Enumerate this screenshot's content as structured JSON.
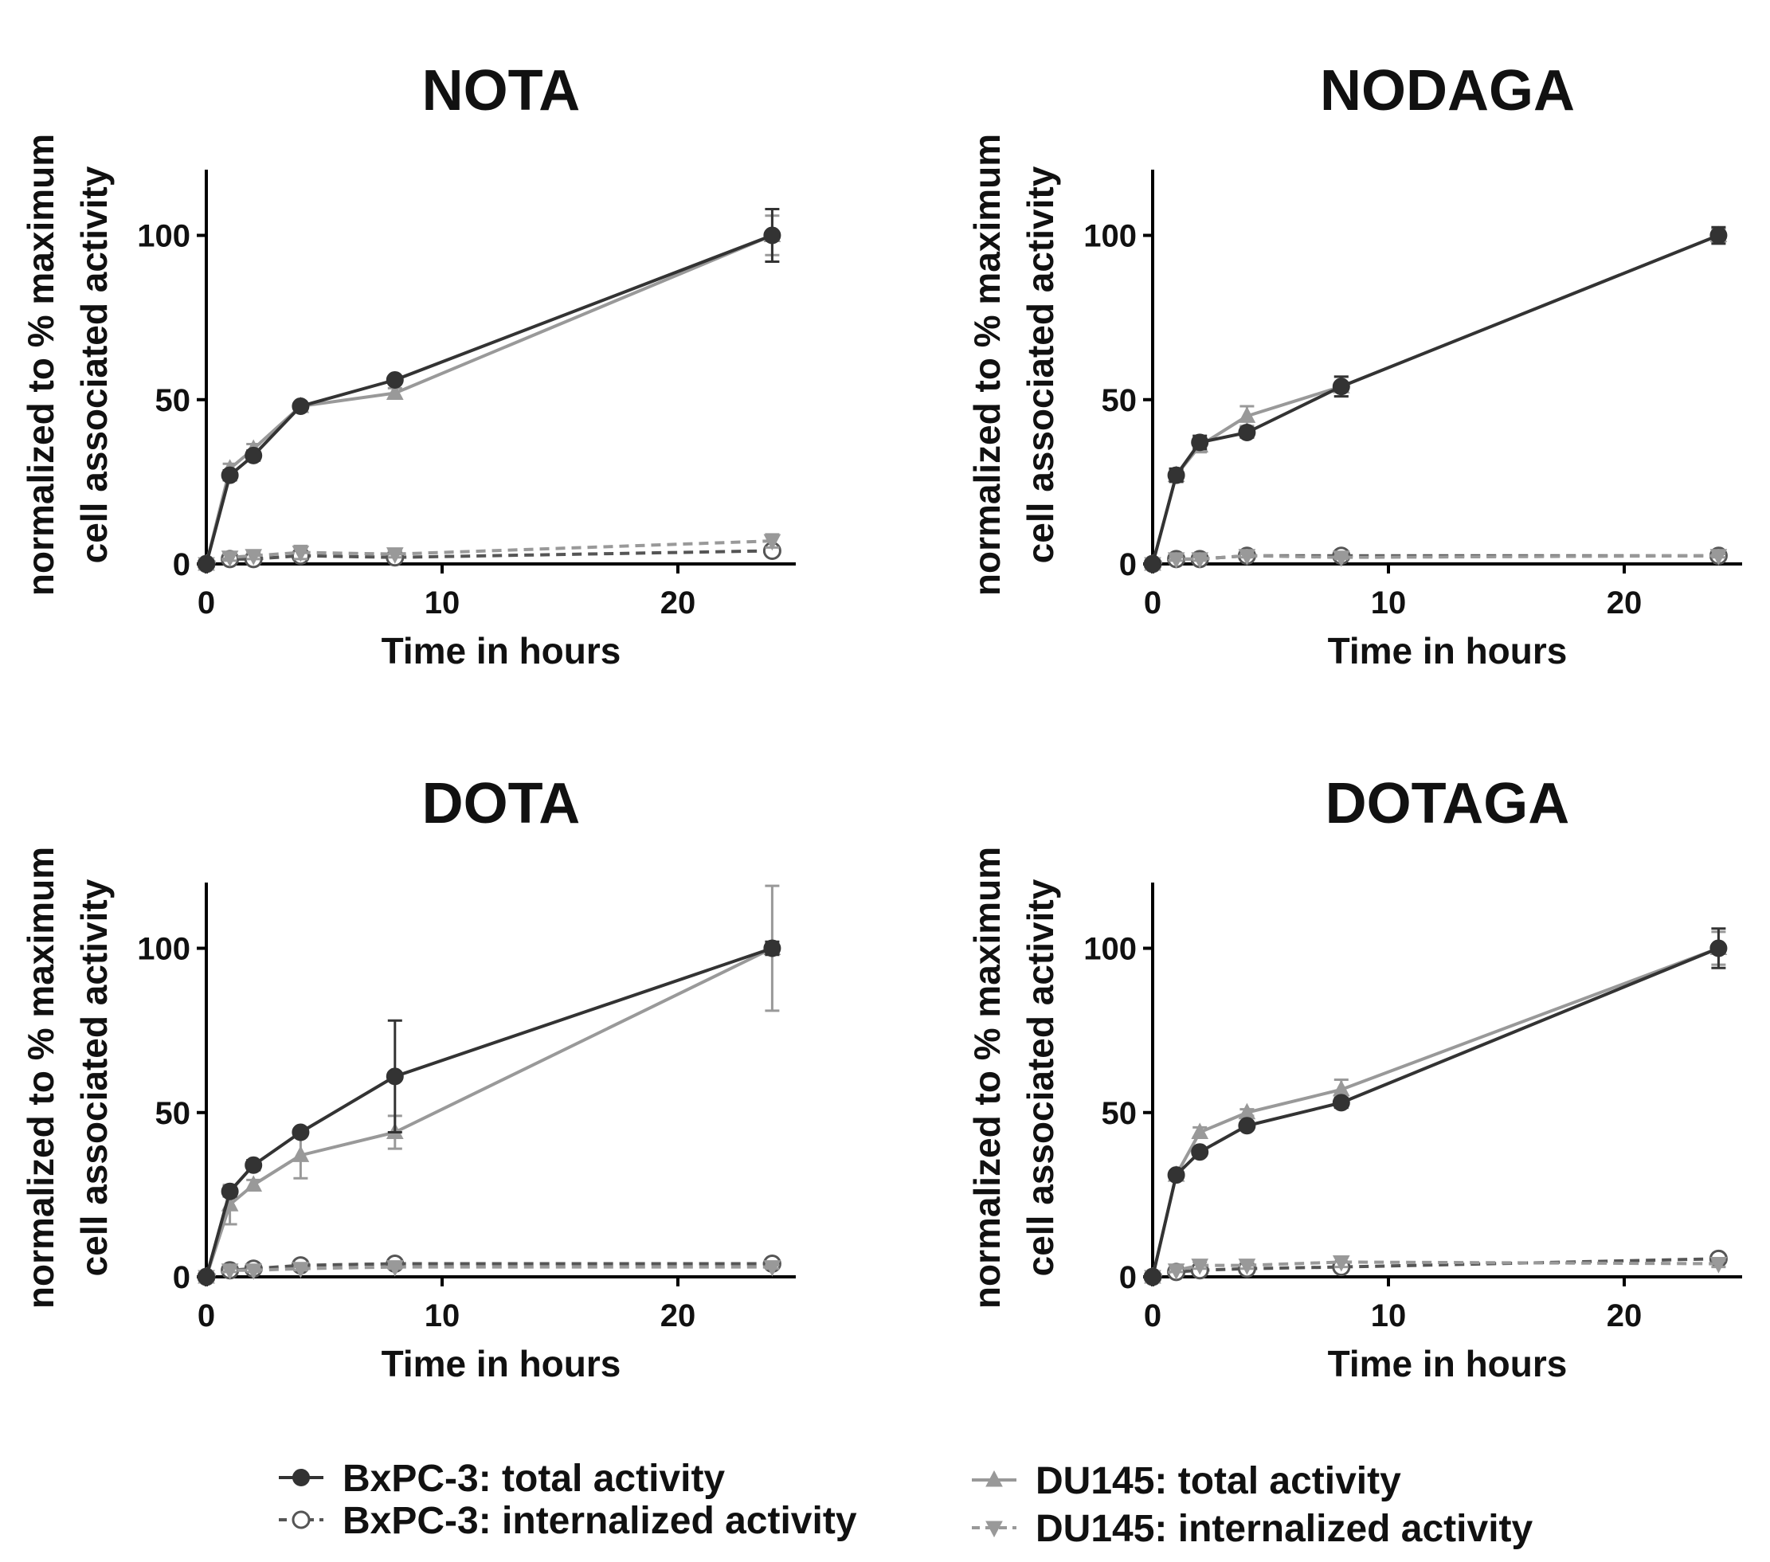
{
  "legend": [
    {
      "key": "bx_total",
      "label": "BxPC-3: total activity",
      "color": "#333333",
      "marker": "filled-circle",
      "dashed": false
    },
    {
      "key": "bx_int",
      "label": "BxPC-3: internalized activity",
      "color": "#555555",
      "marker": "open-circle",
      "dashed": true
    },
    {
      "key": "du_total",
      "label": "DU145: total activity",
      "color": "#999999",
      "marker": "triangle-up",
      "dashed": false
    },
    {
      "key": "du_int",
      "label": "DU145: internalized activity",
      "color": "#999999",
      "marker": "triangle-down",
      "dashed": true
    }
  ],
  "chart_data": [
    {
      "type": "line",
      "title": "NOTA",
      "xlabel": "Time in hours",
      "ylabel": [
        "normalized to % maximum",
        "cell associated activity"
      ],
      "xlim": [
        0,
        25
      ],
      "ylim": [
        0,
        120
      ],
      "xticks": [
        0,
        10,
        20
      ],
      "yticks": [
        0,
        50,
        100
      ],
      "x": [
        0,
        1,
        2,
        4,
        8,
        24
      ],
      "series": [
        {
          "key": "bx_total",
          "name": "BxPC-3: total activity",
          "values": [
            0,
            27,
            33,
            48,
            56,
            100
          ],
          "errors": [
            0,
            1.5,
            1.5,
            1,
            1,
            8
          ]
        },
        {
          "key": "du_total",
          "name": "DU145: total activity",
          "values": [
            0,
            29,
            35,
            48,
            52,
            100
          ],
          "errors": [
            0,
            1.5,
            1.5,
            1,
            1.5,
            6
          ]
        },
        {
          "key": "bx_int",
          "name": "BxPC-3: internalized activity",
          "values": [
            0,
            1.5,
            1.5,
            2.5,
            2,
            4
          ],
          "errors": [
            0,
            0.5,
            0.5,
            1,
            0.5,
            1
          ]
        },
        {
          "key": "du_int",
          "name": "DU145: internalized activity",
          "values": [
            0,
            2,
            2.5,
            3.5,
            3,
            7
          ],
          "errors": [
            0,
            1,
            1,
            2,
            1,
            2
          ]
        }
      ]
    },
    {
      "type": "line",
      "title": "NODAGA",
      "xlabel": "Time in hours",
      "ylabel": [
        "normalized to % maximum",
        "cell associated activity"
      ],
      "xlim": [
        0,
        25
      ],
      "ylim": [
        0,
        120
      ],
      "xticks": [
        0,
        10,
        20
      ],
      "yticks": [
        0,
        50,
        100
      ],
      "x": [
        0,
        1,
        2,
        4,
        8,
        24
      ],
      "series": [
        {
          "key": "bx_total",
          "name": "BxPC-3: total activity",
          "values": [
            0,
            27,
            37,
            40,
            54,
            100
          ],
          "errors": [
            0,
            2,
            2,
            1.5,
            3,
            2.5
          ]
        },
        {
          "key": "du_total",
          "name": "DU145: total activity",
          "values": [
            0,
            27,
            36,
            45,
            54,
            100
          ],
          "errors": [
            0,
            2,
            2,
            3,
            3,
            2
          ]
        },
        {
          "key": "bx_int",
          "name": "BxPC-3: internalized activity",
          "values": [
            0,
            1.5,
            1.5,
            2.5,
            2.5,
            2.5
          ],
          "errors": [
            0,
            0.5,
            0.5,
            0.5,
            0.5,
            0.5
          ]
        },
        {
          "key": "du_int",
          "name": "DU145: internalized activity",
          "values": [
            0,
            1.5,
            1.5,
            2.5,
            2,
            2.5
          ],
          "errors": [
            0,
            0.5,
            0.5,
            0.5,
            0.5,
            0.5
          ]
        }
      ]
    },
    {
      "type": "line",
      "title": "DOTA",
      "xlabel": "Time in hours",
      "ylabel": [
        "normalized to % maximum",
        "cell associated activity"
      ],
      "xlim": [
        0,
        25
      ],
      "ylim": [
        0,
        120
      ],
      "xticks": [
        0,
        10,
        20
      ],
      "yticks": [
        0,
        50,
        100
      ],
      "x": [
        0,
        1,
        2,
        4,
        8,
        24
      ],
      "series": [
        {
          "key": "bx_total",
          "name": "BxPC-3: total activity",
          "values": [
            0,
            26,
            34,
            44,
            61,
            100
          ],
          "errors": [
            0,
            1.5,
            1.5,
            1,
            17,
            2
          ]
        },
        {
          "key": "du_total",
          "name": "DU145: total activity",
          "values": [
            0,
            22,
            28,
            37,
            44,
            100
          ],
          "errors": [
            0,
            6,
            1.5,
            7,
            5,
            19
          ]
        },
        {
          "key": "bx_int",
          "name": "BxPC-3: internalized activity",
          "values": [
            0,
            2,
            2.5,
            3.5,
            4,
            4
          ],
          "errors": [
            0,
            0.5,
            0.5,
            0.5,
            0.5,
            0.5
          ]
        },
        {
          "key": "du_int",
          "name": "DU145: internalized activity",
          "values": [
            0,
            2,
            2,
            2.5,
            3,
            3
          ],
          "errors": [
            0,
            0.5,
            0.5,
            0.5,
            0.5,
            0.5
          ]
        }
      ]
    },
    {
      "type": "line",
      "title": "DOTAGA",
      "xlabel": "Time in hours",
      "ylabel": [
        "normalized to % maximum",
        "cell associated activity"
      ],
      "xlim": [
        0,
        25
      ],
      "ylim": [
        0,
        120
      ],
      "xticks": [
        0,
        10,
        20
      ],
      "yticks": [
        0,
        50,
        100
      ],
      "x": [
        0,
        1,
        2,
        4,
        8,
        24
      ],
      "series": [
        {
          "key": "bx_total",
          "name": "BxPC-3: total activity",
          "values": [
            0,
            31,
            38,
            46,
            53,
            100
          ],
          "errors": [
            0,
            1,
            1,
            1,
            1.5,
            6
          ]
        },
        {
          "key": "du_total",
          "name": "DU145: total activity",
          "values": [
            0,
            31,
            44,
            50,
            57,
            100
          ],
          "errors": [
            0,
            1,
            1.5,
            1,
            3,
            5
          ]
        },
        {
          "key": "bx_int",
          "name": "BxPC-3: internalized activity",
          "values": [
            0,
            1.5,
            2,
            2.5,
            3,
            5.5
          ],
          "errors": [
            0,
            0.5,
            0.5,
            0.5,
            1,
            1
          ]
        },
        {
          "key": "du_int",
          "name": "DU145: internalized activity",
          "values": [
            0,
            2,
            3.5,
            3.5,
            4.5,
            4
          ],
          "errors": [
            0,
            0.5,
            1,
            1,
            1.5,
            1
          ]
        }
      ]
    }
  ]
}
